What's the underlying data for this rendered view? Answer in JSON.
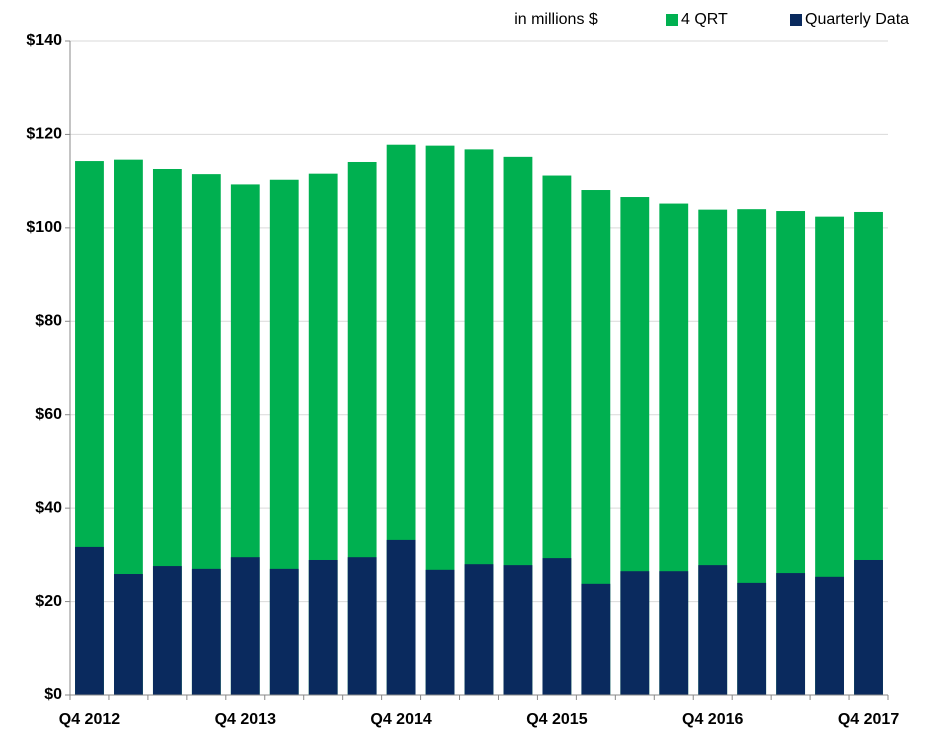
{
  "chart_data": {
    "type": "bar",
    "barmode": "overlay",
    "annotation": "in millions $",
    "categories": [
      "Q4 2012",
      null,
      null,
      null,
      "Q4 2013",
      null,
      null,
      null,
      "Q4 2014",
      null,
      null,
      null,
      "Q4 2015",
      null,
      null,
      null,
      "Q4 2016",
      null,
      null,
      null,
      "Q4 2017"
    ],
    "series": [
      {
        "name": "4 QRT",
        "color": "#00b050",
        "values": [
          114.3,
          114.6,
          112.6,
          111.5,
          109.3,
          110.3,
          111.6,
          114.1,
          117.8,
          117.6,
          116.8,
          115.2,
          111.2,
          108.1,
          106.6,
          105.2,
          103.9,
          104.0,
          103.6,
          102.4,
          103.4
        ]
      },
      {
        "name": "Quarterly Data",
        "color": "#0a2a5e",
        "values": [
          31.7,
          25.9,
          27.6,
          27.0,
          29.5,
          27.0,
          28.9,
          29.5,
          33.2,
          26.8,
          28.0,
          27.8,
          29.3,
          23.8,
          26.5,
          26.5,
          27.8,
          24.0,
          26.1,
          25.3,
          28.9
        ]
      }
    ],
    "ylim": [
      0,
      140
    ],
    "yticks": [
      {
        "value": 0,
        "label": "$0"
      },
      {
        "value": 20,
        "label": "$20"
      },
      {
        "value": 40,
        "label": "$40"
      },
      {
        "value": 60,
        "label": "$60"
      },
      {
        "value": 80,
        "label": "$80"
      },
      {
        "value": 100,
        "label": "$100"
      },
      {
        "value": 120,
        "label": "$120"
      },
      {
        "value": 140,
        "label": "$140"
      }
    ],
    "grid": true
  }
}
